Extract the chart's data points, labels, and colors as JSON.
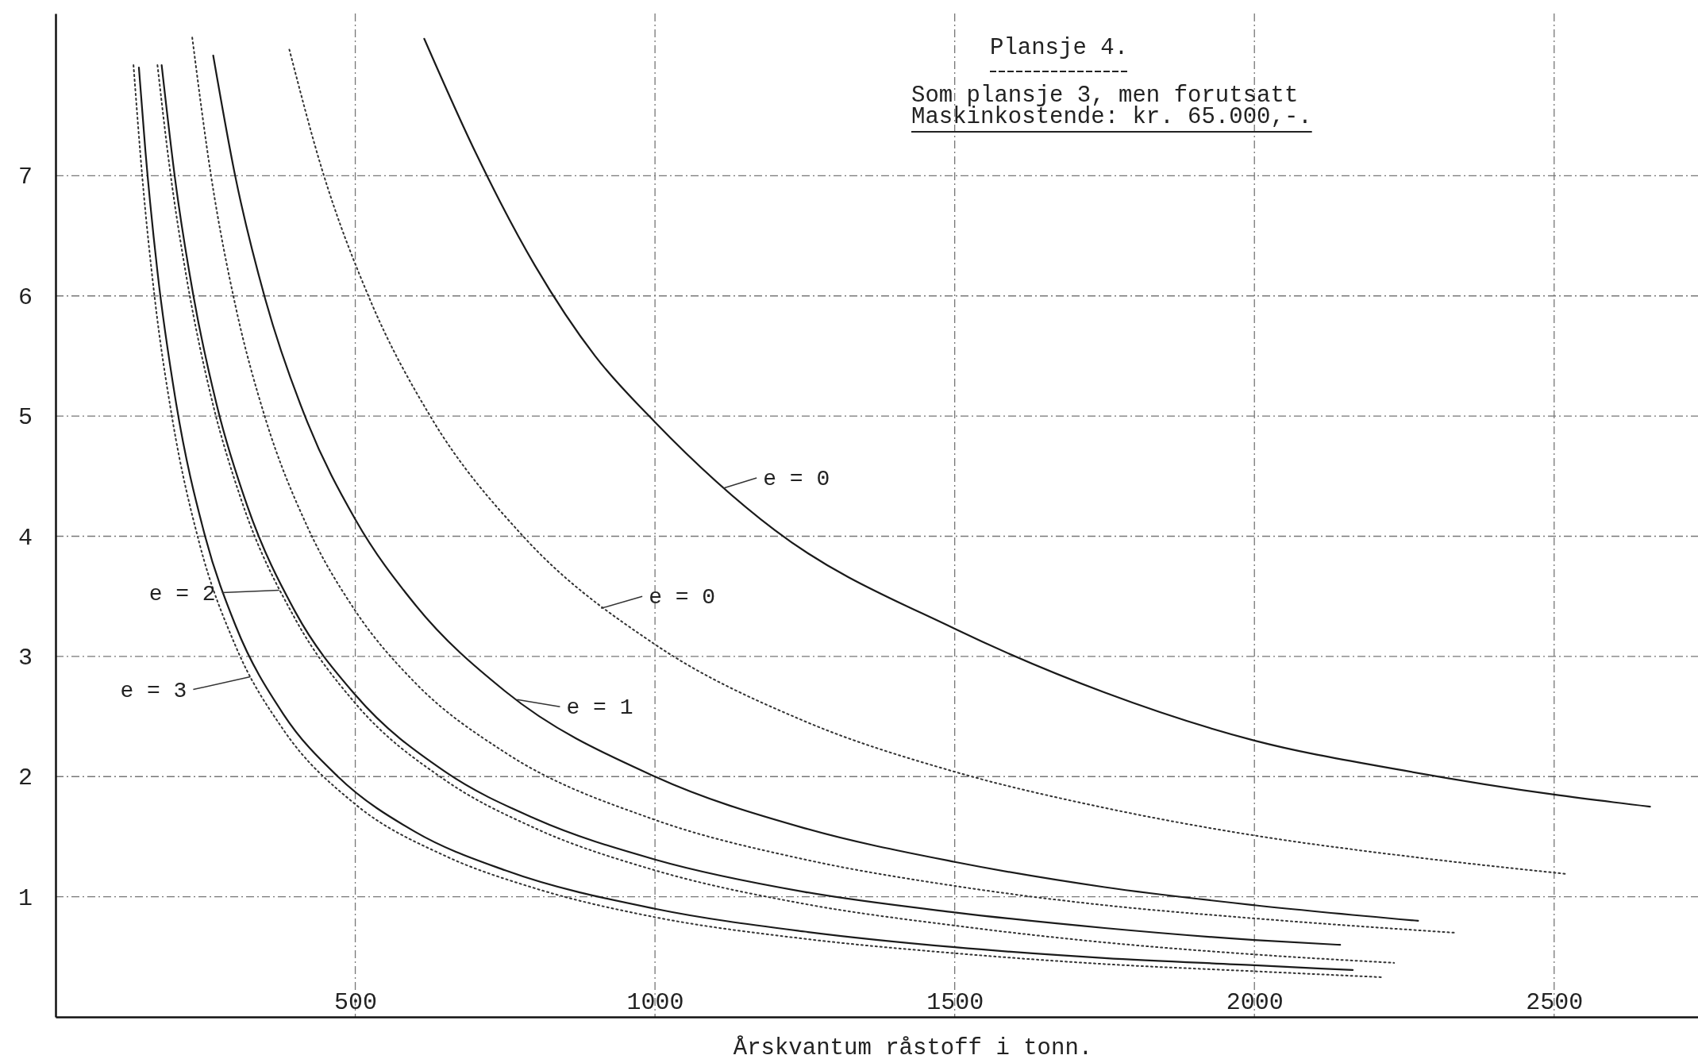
{
  "chart_data": {
    "type": "line",
    "title": "Plansje 4.",
    "subtitle": "Som plansje 3, men forutsatt\nMaskinkostende: kr. 65.000,-.",
    "xlabel": "Årskvantum råstoff i tonn.",
    "xlim": [
      0,
      2740
    ],
    "ylim": [
      0,
      8.35
    ],
    "xticks": [
      500,
      1000,
      1500,
      2000,
      2500
    ],
    "yticks": [
      1,
      2,
      3,
      4,
      5,
      6,
      7
    ],
    "grid": true,
    "marker": "none",
    "series": [
      {
        "color": "#1a1a1a",
        "line_style": "solid",
        "x": [
          615,
          700,
          800,
          900,
          1000,
          1200,
          1500,
          1750,
          2000,
          2250,
          2500,
          2660
        ],
        "values": [
          8.14,
          7.2,
          6.25,
          5.5,
          4.95,
          4.05,
          3.23,
          2.7,
          2.3,
          2.05,
          1.85,
          1.75
        ]
      },
      {
        "color": "#333333",
        "line_style": "dotted",
        "x": [
          390,
          444,
          527,
          625,
          780,
          1000,
          1250,
          1500,
          1750,
          2000,
          2250,
          2520
        ],
        "values": [
          8.05,
          7.06,
          5.94,
          5.0,
          4.0,
          3.1,
          2.46,
          2.04,
          1.74,
          1.51,
          1.34,
          1.19
        ]
      },
      {
        "color": "#1a1a1a",
        "line_style": "solid",
        "x": [
          263,
          300,
          350,
          420,
          500,
          600,
          750,
          1000,
          1250,
          1500,
          1750,
          2000,
          2273
        ],
        "values": [
          8.0,
          6.99,
          5.97,
          4.95,
          4.14,
          3.43,
          2.71,
          2.0,
          1.57,
          1.29,
          1.08,
          0.93,
          0.8
        ]
      },
      {
        "color": "#333333",
        "line_style": "dotted",
        "x": [
          228,
          260,
          300,
          350,
          420,
          500,
          600,
          750,
          1000,
          1250,
          1500,
          1750,
          2000,
          2336
        ],
        "values": [
          8.15,
          6.98,
          5.92,
          4.98,
          4.08,
          3.38,
          2.78,
          2.2,
          1.64,
          1.31,
          1.09,
          0.93,
          0.82,
          0.7
        ]
      },
      {
        "color": "#1a1a1a",
        "line_style": "solid",
        "x": [
          177,
          200,
          230,
          270,
          320,
          400,
          500,
          650,
          800,
          1000,
          1250,
          1500,
          1750,
          2000,
          2143
        ],
        "values": [
          7.92,
          6.95,
          6.0,
          5.07,
          4.25,
          3.37,
          2.68,
          2.04,
          1.65,
          1.31,
          1.04,
          0.87,
          0.74,
          0.64,
          0.6
        ]
      },
      {
        "color": "#333333",
        "line_style": "dotted",
        "x": [
          170,
          190,
          220,
          260,
          310,
          400,
          500,
          650,
          800,
          1000,
          1250,
          1500,
          1750,
          2000,
          2233
        ],
        "values": [
          7.92,
          7.08,
          6.11,
          5.15,
          4.3,
          3.31,
          2.61,
          1.97,
          1.57,
          1.22,
          0.94,
          0.76,
          0.62,
          0.52,
          0.45
        ]
      },
      {
        "color": "#1a1a1a",
        "line_style": "solid",
        "x": [
          139,
          150,
          170,
          200,
          250,
          300,
          380,
          471,
          600,
          750,
          1000,
          1250,
          1500,
          1750,
          2000,
          2164
        ],
        "values": [
          7.9,
          7.2,
          6.2,
          5.14,
          3.99,
          3.26,
          2.52,
          2.0,
          1.54,
          1.22,
          0.9,
          0.71,
          0.58,
          0.49,
          0.43,
          0.39
        ]
      },
      {
        "color": "#333333",
        "line_style": "dotted",
        "x": [
          130,
          145,
          165,
          195,
          240,
          300,
          380,
          500,
          650,
          800,
          1000,
          1250,
          1500,
          1750,
          2000,
          2215
        ],
        "values": [
          7.92,
          6.97,
          6.0,
          4.97,
          3.94,
          3.09,
          2.39,
          1.77,
          1.34,
          1.07,
          0.83,
          0.65,
          0.53,
          0.44,
          0.38,
          0.33
        ]
      }
    ],
    "annotations": [
      {
        "text": "e = 0",
        "x": 1114,
        "y": 4.4
      },
      {
        "text": "e = 0",
        "x": 910,
        "y": 3.4
      },
      {
        "text": "e = 1",
        "x": 770,
        "y": 2.64
      },
      {
        "text": "e = 2",
        "x": 373,
        "y": 3.55
      },
      {
        "text": "e = 3",
        "x": 325,
        "y": 2.83
      }
    ]
  }
}
